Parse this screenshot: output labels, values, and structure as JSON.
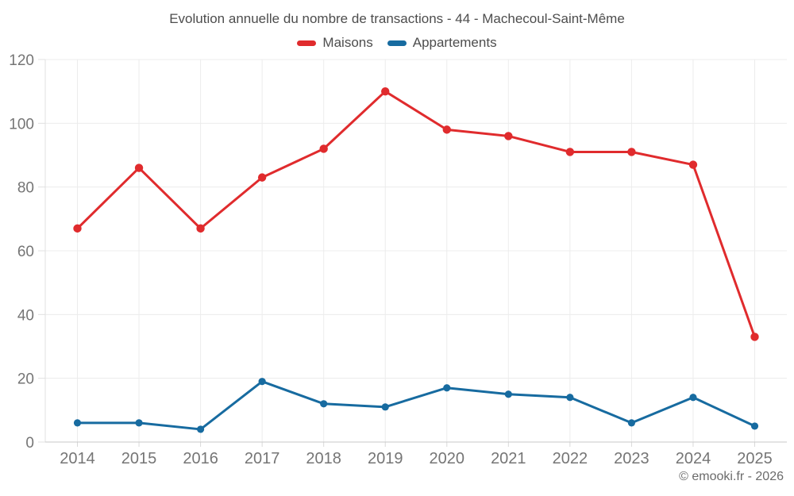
{
  "chart_data": {
    "type": "line",
    "title": "Evolution annuelle du nombre de transactions - 44 - Machecoul-Saint-Même",
    "categories": [
      "2014",
      "2015",
      "2016",
      "2017",
      "2018",
      "2019",
      "2020",
      "2021",
      "2022",
      "2023",
      "2024",
      "2025"
    ],
    "series": [
      {
        "name": "Maisons",
        "color": "#e02b2d",
        "values": [
          67,
          86,
          67,
          83,
          92,
          110,
          98,
          96,
          91,
          91,
          87,
          33
        ]
      },
      {
        "name": "Appartements",
        "color": "#176ba0",
        "values": [
          6,
          6,
          4,
          19,
          12,
          11,
          17,
          15,
          14,
          6,
          14,
          5
        ]
      }
    ],
    "xlabel": "",
    "ylabel": "",
    "ylim": [
      0,
      120
    ],
    "ytick_step": 20,
    "grid": true,
    "legend_position": "top"
  },
  "footer": {
    "copyright": "© emooki.fr - 2026"
  }
}
